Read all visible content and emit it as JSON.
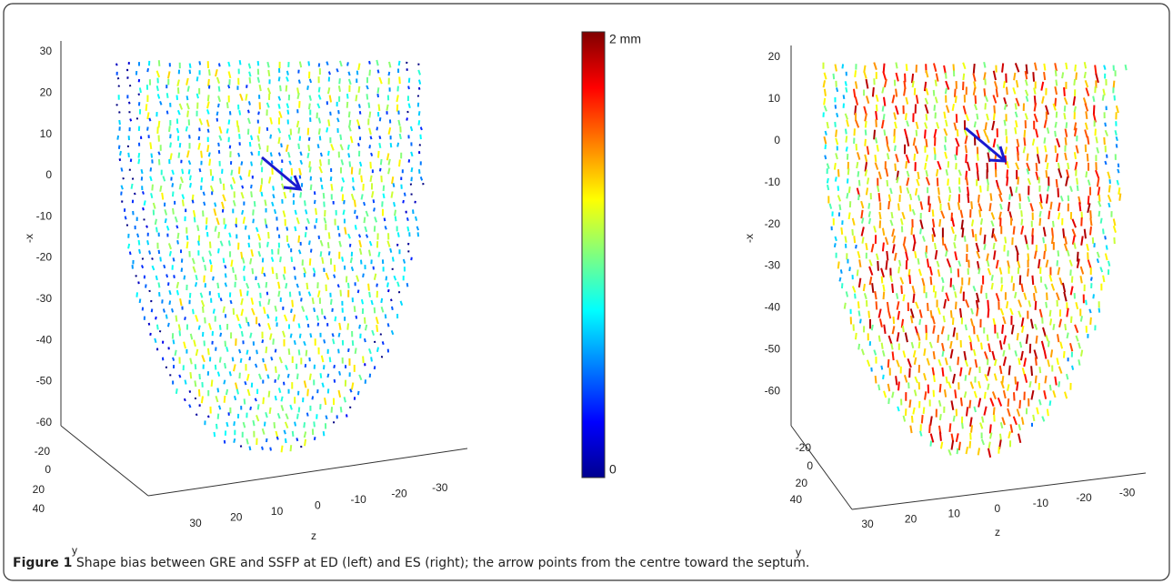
{
  "left_plot": {
    "x_axis_label": "-x",
    "x_ticks": [
      "30",
      "20",
      "10",
      "0",
      "-10",
      "-20",
      "-30",
      "-40",
      "-50",
      "-60"
    ],
    "y_axis_label": "y",
    "y_ticks": [
      "-20",
      "0",
      "20",
      "40"
    ],
    "z_axis_label": "z",
    "z_ticks": [
      "30",
      "20",
      "10",
      "0",
      "-10",
      "-20",
      "-30"
    ]
  },
  "colorbar": {
    "top_label": "2 mm",
    "bottom_label": "0"
  },
  "right_plot": {
    "x_axis_label": "-x",
    "x_ticks": [
      "20",
      "10",
      "0",
      "-10",
      "-20",
      "-30",
      "-40",
      "-50",
      "-60"
    ],
    "y_axis_label": "y",
    "y_ticks": [
      "-20",
      "0",
      "20",
      "40"
    ],
    "z_axis_label": "z",
    "z_ticks": [
      "30",
      "20",
      "10",
      "0",
      "-10",
      "-20",
      "-30"
    ]
  },
  "caption": {
    "label": "Figure 1",
    "text": "Shape bias between GRE and SSFP at ED (left) and ES (right); the arrow points from the centre toward the septum."
  }
}
